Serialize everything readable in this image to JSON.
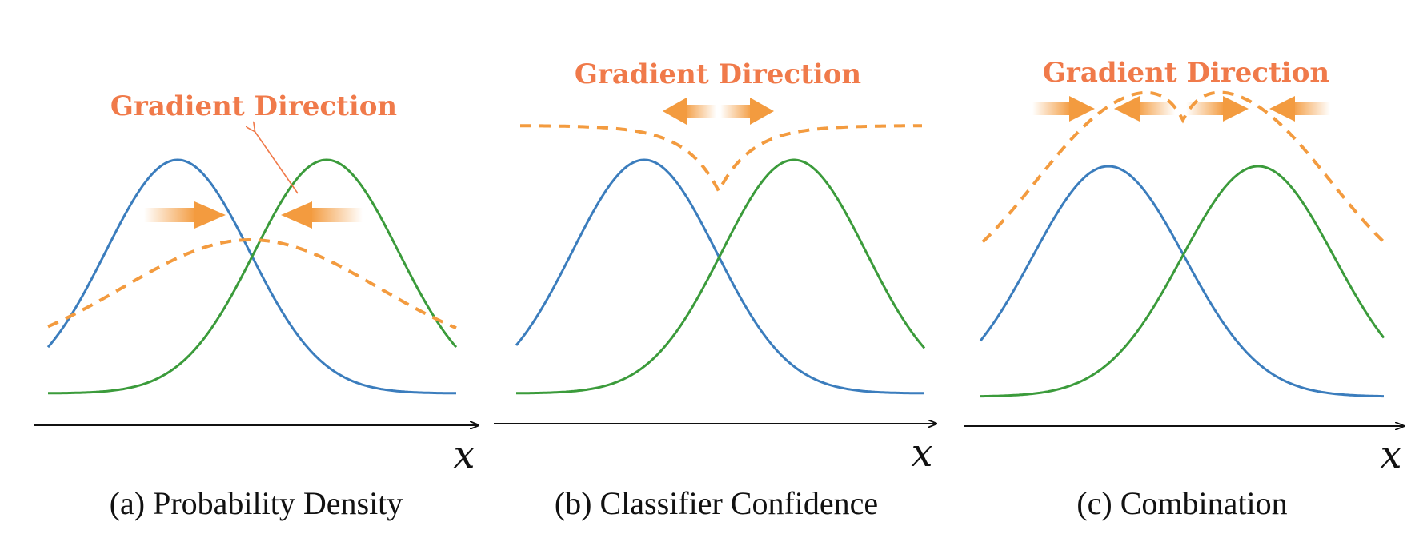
{
  "colors": {
    "blue": "#3b7dbd",
    "green": "#3b9b3b",
    "orange": "#f39b3f",
    "title": "#f07a4a",
    "axis": "#111111"
  },
  "icons": [
    "gradient-arrow-right-icon",
    "gradient-arrow-left-icon",
    "pointer-arrow-icon"
  ],
  "panels": [
    {
      "id": "a",
      "annotation": "Gradient Direction",
      "axis_label": "x",
      "caption": "(a) Probability Density"
    },
    {
      "id": "b",
      "annotation": "Gradient Direction",
      "axis_label": "x",
      "caption": "(b) Classifier Confidence"
    },
    {
      "id": "c",
      "annotation": "Gradient Direction",
      "axis_label": "x",
      "caption": "(c) Combination"
    }
  ]
}
